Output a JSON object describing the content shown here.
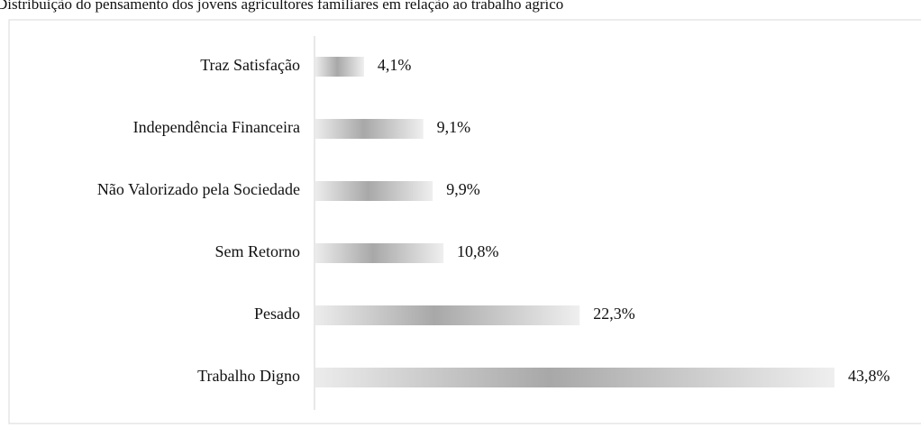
{
  "chart_data": {
    "type": "bar",
    "orientation": "horizontal",
    "title": "Distribuição do pensamento dos jovens agricultores familiares em relação ao trabalho agríco",
    "categories": [
      "Traz Satisfação",
      "Independência Financeira",
      "Não Valorizado pela Sociedade",
      "Sem Retorno",
      "Pesado",
      "Trabalho Digno"
    ],
    "values": [
      4.1,
      9.1,
      9.9,
      10.8,
      22.3,
      43.8
    ],
    "value_labels": [
      "4,1%",
      "9,1%",
      "9,9%",
      "10,8%",
      "22,3%",
      "43,8%"
    ],
    "color": "#a8a8a8"
  }
}
